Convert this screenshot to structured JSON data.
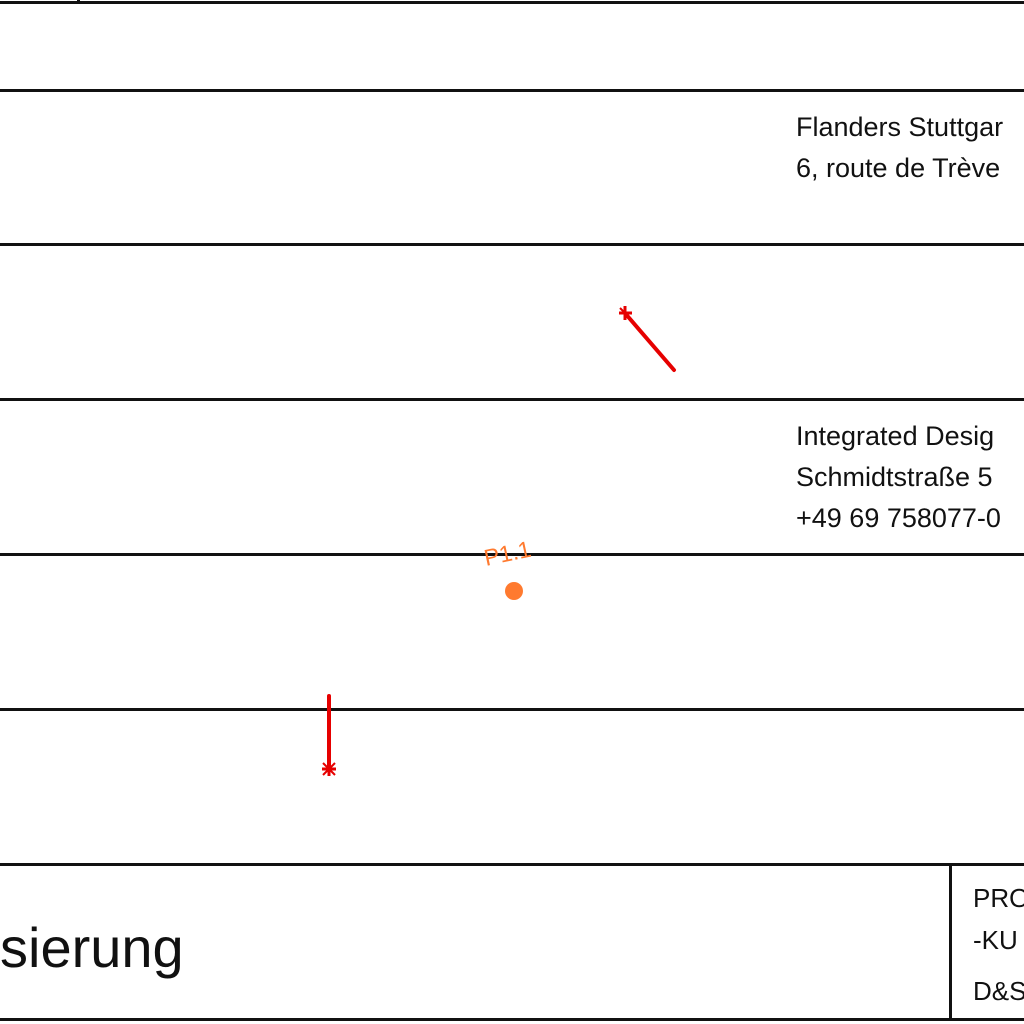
{
  "address_block_1": {
    "line_1": "Flanders Stuttgar",
    "line_2": "6, route de Trève"
  },
  "address_block_2": {
    "line_1": "Integrated Desig",
    "line_2": "Schmidtstraße 5",
    "line_3": "+49 69 758077-0"
  },
  "markers": {
    "point_label": "P1.1",
    "point_color": "#ff7a2f",
    "pin_color": "#e60000"
  },
  "title_block": {
    "title": "sierung",
    "meta_line_1": "PRO",
    "meta_line_2": "-KU",
    "meta_line_3": "D&S"
  }
}
